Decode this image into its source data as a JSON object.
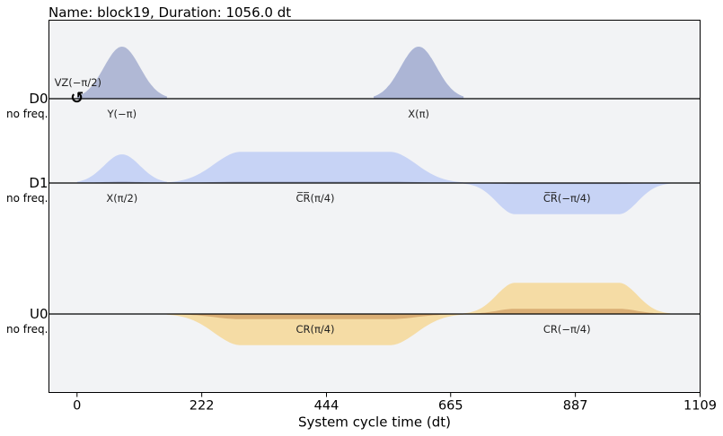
{
  "chart_data": {
    "type": "area",
    "title": "Name: block19, Duration: 1056.0 dt",
    "xlabel": "System cycle time (dt)",
    "xlim": [
      -50,
      1109
    ],
    "x_ticks": [
      0,
      222,
      444,
      665,
      887,
      1109
    ],
    "x_tick_labels": [
      "0",
      "222",
      "444",
      "665",
      "887",
      "1109"
    ],
    "grid": false,
    "colors": {
      "drive_real": "#c7d3f5",
      "drive_imag": "#a8b1d1",
      "control_real": "#f5dca5",
      "control_imag": "#d7a870",
      "baseline": "#000000",
      "background": "#f2f3f5"
    },
    "channels": [
      {
        "name": "D0",
        "freq_label": "no freq.",
        "instructions": [
          {
            "label": "Y(−π)",
            "t0": 0,
            "duration": 160,
            "shape": "gaussian",
            "real": 0,
            "imag": 1.0
          },
          {
            "label": "X(π)",
            "t0": 528,
            "duration": 160,
            "shape": "gaussian",
            "real": 1.0,
            "imag": 1.0
          }
        ],
        "frame_changes": [
          {
            "label": "VZ(−π/2)",
            "t": 0,
            "icon": "rotate-icon"
          }
        ]
      },
      {
        "name": "D1",
        "freq_label": "no freq.",
        "instructions": [
          {
            "label": "X(π/2)",
            "t0": 0,
            "duration": 160,
            "shape": "gaussian",
            "real": 0.55,
            "imag": 0.03
          },
          {
            "label": "C̅R̅(π/4)",
            "t0": 160,
            "duration": 528,
            "shape": "gaussian_square",
            "real": 0.6,
            "imag": 0.03
          },
          {
            "label": "C̅R̅(−π/4)",
            "t0": 688,
            "duration": 368,
            "shape": "gaussian_square",
            "real": -0.6,
            "imag": -0.02
          }
        ]
      },
      {
        "name": "U0",
        "freq_label": "no freq.",
        "instructions": [
          {
            "label": "CR(π/4)",
            "t0": 160,
            "duration": 528,
            "shape": "gaussian_square",
            "real": -0.6,
            "imag": -0.1
          },
          {
            "label": "CR(−π/4)",
            "t0": 688,
            "duration": 368,
            "shape": "gaussian_square",
            "real": 0.6,
            "imag": 0.1
          }
        ]
      }
    ]
  }
}
